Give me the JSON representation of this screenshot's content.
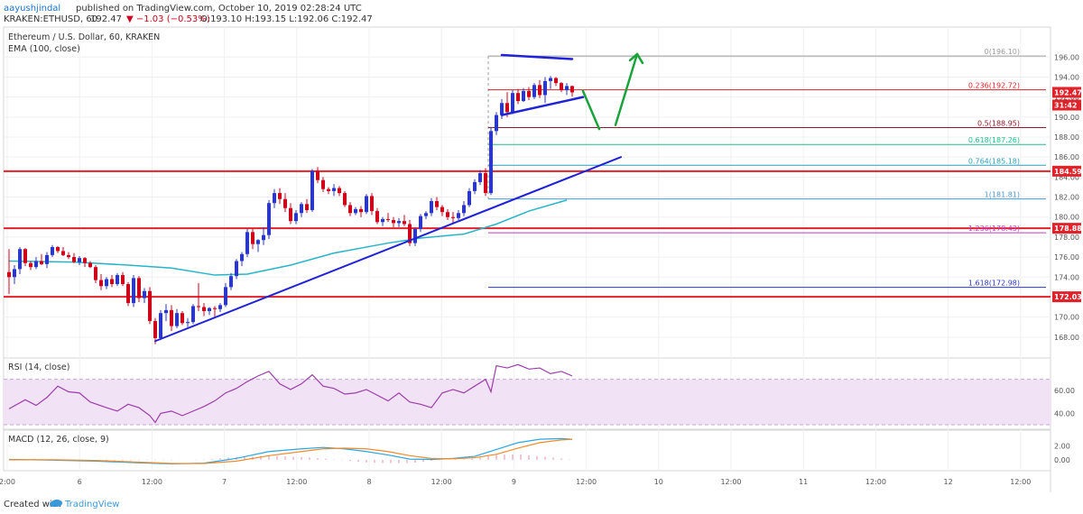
{
  "header": {
    "publisher_line_user": "aayushjindal",
    "publisher_line_rest": " published on TradingView.com, October 10, 2019 02:28:24 UTC",
    "symbol_line_prefix": "KRAKEN:ETHUSD, 60",
    "last_price": "192.47",
    "change": "▼ −1.03 (−0.53%)",
    "ohlc": "O:193.10 H:193.15 L:192.06 C:192.47"
  },
  "main_pane": {
    "title": "Ethereum / U.S. Dollar, 60, KRAKEN",
    "indicator": "EMA (100, close)"
  },
  "rsi_pane": {
    "label": "RSI (14, close)"
  },
  "macd_pane": {
    "label": "MACD (12, 26, close, 9)"
  },
  "footer": {
    "created_with": "Created with",
    "brand": "TradingView"
  },
  "colors": {
    "up": "#2a37c8",
    "down": "#d0021b",
    "ema": "#26b5c8",
    "trend": "#1f22d6",
    "arrow": "#19a33a",
    "hline": "#e0232a",
    "rsi_line": "#9c3caa",
    "rsi_fill": "#f1e3f5",
    "macd_line": "#2aa7e0",
    "macd_signal": "#f08a2a",
    "macd_hist": "#e48aa8"
  },
  "chart_data": {
    "type": "candlestick",
    "x_ticks": [
      "2:00",
      "6",
      "12:00",
      "7",
      "12:00",
      "8",
      "12:00",
      "9",
      "12:00",
      "10",
      "12:00",
      "11",
      "12:00",
      "12",
      "12:00"
    ],
    "price_axis": [
      "196.00",
      "194.00",
      "192.00",
      "190.00",
      "188.00",
      "186.00",
      "184.00",
      "182.00",
      "180.00",
      "178.00",
      "176.00",
      "174.00",
      "172.00",
      "170.00",
      "168.00"
    ],
    "price_range": [
      166.0,
      199.0
    ],
    "price_tags": [
      {
        "label": "192.47",
        "value": 192.47,
        "color": "#e0232a"
      },
      {
        "label": "31:42",
        "value": 191.2,
        "color": "#e0232a"
      },
      {
        "label": "184.59",
        "value": 184.59,
        "color": "#e0232a"
      },
      {
        "label": "178.88",
        "value": 178.88,
        "color": "#e0232a"
      },
      {
        "label": "172.03",
        "value": 172.03,
        "color": "#e0232a"
      }
    ],
    "horizontal_levels": [
      184.59,
      178.88,
      172.03
    ],
    "fibonacci": [
      {
        "label": "0(196.10)",
        "value": 196.1,
        "color": "#9a9a9a"
      },
      {
        "label": "0.236(192.72)",
        "value": 192.72,
        "color": "#e0232a"
      },
      {
        "label": "0.5(188.95)",
        "value": 188.95,
        "color": "#8c1a2a"
      },
      {
        "label": "0.618(187.26)",
        "value": 187.26,
        "color": "#1fbf8a"
      },
      {
        "label": "0.764(185.18)",
        "value": 185.18,
        "color": "#2aa0b8"
      },
      {
        "label": "1(181.81)",
        "value": 181.81,
        "color": "#4a9ad8"
      },
      {
        "label": "1.236(178.43)",
        "value": 178.43,
        "color": "#c03cc0"
      },
      {
        "label": "1.618(172.98)",
        "value": 172.98,
        "color": "#2a37c8"
      }
    ],
    "candles": [
      [
        174.5,
        176.8,
        172.3,
        174.0
      ],
      [
        174.0,
        175.2,
        173.3,
        174.8
      ],
      [
        174.8,
        177.0,
        174.3,
        176.8
      ],
      [
        176.8,
        176.9,
        175.1,
        175.4
      ],
      [
        175.4,
        175.6,
        174.7,
        175.0
      ],
      [
        175.0,
        176.0,
        174.8,
        175.6
      ],
      [
        175.6,
        176.3,
        175.2,
        175.3
      ],
      [
        175.3,
        176.5,
        174.9,
        176.2
      ],
      [
        176.2,
        177.2,
        176.0,
        177.0
      ],
      [
        177.0,
        177.1,
        176.4,
        176.6
      ],
      [
        176.6,
        177.0,
        176.1,
        176.2
      ],
      [
        176.2,
        176.5,
        175.8,
        176.0
      ],
      [
        176.0,
        176.4,
        175.4,
        175.5
      ],
      [
        175.5,
        176.1,
        175.2,
        175.9
      ],
      [
        175.9,
        176.0,
        175.0,
        175.4
      ],
      [
        175.4,
        175.6,
        174.9,
        175.0
      ],
      [
        175.0,
        175.2,
        173.4,
        173.7
      ],
      [
        173.7,
        174.3,
        172.7,
        173.1
      ],
      [
        173.1,
        174.0,
        172.8,
        173.8
      ],
      [
        173.8,
        174.2,
        173.0,
        173.3
      ],
      [
        173.3,
        174.4,
        173.1,
        174.2
      ],
      [
        174.2,
        174.5,
        173.1,
        173.3
      ],
      [
        173.3,
        173.5,
        171.1,
        171.4
      ],
      [
        171.4,
        174.2,
        171.0,
        173.9
      ],
      [
        173.9,
        174.1,
        171.5,
        171.9
      ],
      [
        171.9,
        172.9,
        171.4,
        172.6
      ],
      [
        172.6,
        173.0,
        169.3,
        169.6
      ],
      [
        169.6,
        169.9,
        167.3,
        167.9
      ],
      [
        167.9,
        170.7,
        167.7,
        170.4
      ],
      [
        170.4,
        171.3,
        169.6,
        170.7
      ],
      [
        170.7,
        171.2,
        168.6,
        169.1
      ],
      [
        169.1,
        170.8,
        168.9,
        170.4
      ],
      [
        170.4,
        170.6,
        169.2,
        169.4
      ],
      [
        169.4,
        169.9,
        169.0,
        169.5
      ],
      [
        169.5,
        171.3,
        169.3,
        171.1
      ],
      [
        171.1,
        173.4,
        170.6,
        171.0
      ],
      [
        171.0,
        171.4,
        170.1,
        170.6
      ],
      [
        170.6,
        171.0,
        170.2,
        170.9
      ],
      [
        170.9,
        171.1,
        169.9,
        170.8
      ],
      [
        170.8,
        171.4,
        170.5,
        171.2
      ],
      [
        171.2,
        173.4,
        171.0,
        173.0
      ],
      [
        173.0,
        174.4,
        172.7,
        174.1
      ],
      [
        174.1,
        175.8,
        173.8,
        175.6
      ],
      [
        175.6,
        176.5,
        175.1,
        176.3
      ],
      [
        176.3,
        178.8,
        176.0,
        178.5
      ],
      [
        178.5,
        178.8,
        176.8,
        177.3
      ],
      [
        177.3,
        177.8,
        176.5,
        177.7
      ],
      [
        177.7,
        179.0,
        177.2,
        178.2
      ],
      [
        178.2,
        181.7,
        177.8,
        181.4
      ],
      [
        181.4,
        182.8,
        180.9,
        182.4
      ],
      [
        182.4,
        182.9,
        181.3,
        181.8
      ],
      [
        181.8,
        182.4,
        180.5,
        180.9
      ],
      [
        180.9,
        181.4,
        179.3,
        179.6
      ],
      [
        179.6,
        180.7,
        179.3,
        180.4
      ],
      [
        180.4,
        181.5,
        180.0,
        181.3
      ],
      [
        181.3,
        181.8,
        180.4,
        180.7
      ],
      [
        180.7,
        184.8,
        180.5,
        184.6
      ],
      [
        184.6,
        185.0,
        183.4,
        183.7
      ],
      [
        183.7,
        184.0,
        182.5,
        182.8
      ],
      [
        182.8,
        183.0,
        182.3,
        182.6
      ],
      [
        182.6,
        183.3,
        182.1,
        182.9
      ],
      [
        182.9,
        183.1,
        182.1,
        182.4
      ],
      [
        182.4,
        182.6,
        181.0,
        181.2
      ],
      [
        181.2,
        181.5,
        180.1,
        180.4
      ],
      [
        180.4,
        181.0,
        180.2,
        180.8
      ],
      [
        180.8,
        181.1,
        180.0,
        180.5
      ],
      [
        180.5,
        182.3,
        180.3,
        182.1
      ],
      [
        182.1,
        182.4,
        180.2,
        180.6
      ],
      [
        180.6,
        180.9,
        179.3,
        179.5
      ],
      [
        179.5,
        180.0,
        179.1,
        179.8
      ],
      [
        179.8,
        180.4,
        179.5,
        179.7
      ],
      [
        179.7,
        180.0,
        179.0,
        179.4
      ],
      [
        179.4,
        179.9,
        179.0,
        179.6
      ],
      [
        179.6,
        180.2,
        179.1,
        179.3
      ],
      [
        179.3,
        179.7,
        177.1,
        177.4
      ],
      [
        177.4,
        179.0,
        177.1,
        178.8
      ],
      [
        178.8,
        180.3,
        178.5,
        180.1
      ],
      [
        180.1,
        180.6,
        179.8,
        180.4
      ],
      [
        180.4,
        181.9,
        180.1,
        181.6
      ],
      [
        181.6,
        182.0,
        180.7,
        181.0
      ],
      [
        181.0,
        181.2,
        180.1,
        180.5
      ],
      [
        180.5,
        180.8,
        179.7,
        180.0
      ],
      [
        180.0,
        180.5,
        179.3,
        179.9
      ],
      [
        179.9,
        180.7,
        179.7,
        180.4
      ],
      [
        180.4,
        181.6,
        180.1,
        181.2
      ],
      [
        181.2,
        182.9,
        181.0,
        182.6
      ],
      [
        182.6,
        183.8,
        182.3,
        183.5
      ],
      [
        183.5,
        184.7,
        183.2,
        184.4
      ],
      [
        184.4,
        184.9,
        182.1,
        182.4
      ],
      [
        182.4,
        189.0,
        182.2,
        188.6
      ],
      [
        188.6,
        190.5,
        188.2,
        190.2
      ],
      [
        190.2,
        191.8,
        189.8,
        191.4
      ],
      [
        191.4,
        192.5,
        190.0,
        190.5
      ],
      [
        190.5,
        192.7,
        190.3,
        192.4
      ],
      [
        192.4,
        192.8,
        191.3,
        191.6
      ],
      [
        191.6,
        192.9,
        191.5,
        192.6
      ],
      [
        192.6,
        193.0,
        191.7,
        192.0
      ],
      [
        192.0,
        193.4,
        191.8,
        193.2
      ],
      [
        193.2,
        193.7,
        191.9,
        192.2
      ],
      [
        192.2,
        194.0,
        191.4,
        193.6
      ],
      [
        193.6,
        194.1,
        192.8,
        193.9
      ],
      [
        193.9,
        194.0,
        193.1,
        193.4
      ],
      [
        193.4,
        193.5,
        192.5,
        192.7
      ],
      [
        192.7,
        193.4,
        192.2,
        193.1
      ],
      [
        193.1,
        193.15,
        192.06,
        192.47
      ]
    ],
    "ema_100": [
      [
        0,
        175.6
      ],
      [
        12,
        175.5
      ],
      [
        22,
        175.2
      ],
      [
        30,
        174.9
      ],
      [
        38,
        174.2
      ],
      [
        44,
        174.3
      ],
      [
        52,
        175.2
      ],
      [
        60,
        176.4
      ],
      [
        70,
        177.4
      ],
      [
        76,
        177.9
      ],
      [
        84,
        178.3
      ],
      [
        90,
        179.3
      ],
      [
        96,
        180.6
      ],
      [
        103,
        181.7
      ]
    ],
    "annotations": {
      "lower_trendline": [
        [
          27,
          167.6
        ],
        [
          113,
          186.0
        ]
      ],
      "upper_channel": [
        [
          91,
          196.2
        ],
        [
          104,
          195.8
        ]
      ],
      "lower_channel": [
        [
          91,
          190.2
        ],
        [
          106,
          192.0
        ]
      ],
      "green_down_arrow": [
        [
          106,
          192.6
        ],
        [
          109,
          188.8
        ]
      ],
      "green_up_arrow": [
        [
          112,
          189.2
        ],
        [
          116,
          196.3
        ]
      ]
    },
    "rsi_axis": [
      "60.00",
      "40.00"
    ],
    "rsi_range": [
      26,
      88
    ],
    "rsi_band": [
      30,
      70
    ],
    "rsi": [
      [
        0,
        44
      ],
      [
        3,
        52
      ],
      [
        5,
        47
      ],
      [
        7,
        54
      ],
      [
        9,
        64
      ],
      [
        11,
        59
      ],
      [
        13,
        58
      ],
      [
        15,
        50
      ],
      [
        18,
        45
      ],
      [
        20,
        42
      ],
      [
        22,
        48
      ],
      [
        24,
        45
      ],
      [
        26,
        38
      ],
      [
        27,
        32
      ],
      [
        28,
        40
      ],
      [
        30,
        42
      ],
      [
        32,
        38
      ],
      [
        34,
        42
      ],
      [
        36,
        46
      ],
      [
        38,
        51
      ],
      [
        40,
        58
      ],
      [
        42,
        62
      ],
      [
        44,
        68
      ],
      [
        46,
        73
      ],
      [
        48,
        77
      ],
      [
        50,
        66
      ],
      [
        52,
        61
      ],
      [
        54,
        66
      ],
      [
        56,
        74
      ],
      [
        58,
        64
      ],
      [
        60,
        62
      ],
      [
        62,
        57
      ],
      [
        64,
        58
      ],
      [
        66,
        61
      ],
      [
        68,
        56
      ],
      [
        70,
        51
      ],
      [
        72,
        58
      ],
      [
        74,
        50
      ],
      [
        76,
        48
      ],
      [
        78,
        45
      ],
      [
        80,
        58
      ],
      [
        82,
        61
      ],
      [
        84,
        58
      ],
      [
        86,
        64
      ],
      [
        88,
        70
      ],
      [
        89,
        59
      ],
      [
        90,
        82
      ],
      [
        92,
        80
      ],
      [
        94,
        83
      ],
      [
        96,
        79
      ],
      [
        98,
        80
      ],
      [
        100,
        75
      ],
      [
        102,
        77
      ],
      [
        104,
        73
      ]
    ],
    "macd_axis": [
      "2.00",
      "0.00"
    ],
    "macd_range": [
      -1.6,
      4.2
    ],
    "macd": [
      [
        0,
        0.05
      ],
      [
        8,
        -0.05
      ],
      [
        16,
        -0.2
      ],
      [
        24,
        -0.45
      ],
      [
        30,
        -0.6
      ],
      [
        36,
        -0.5
      ],
      [
        42,
        0.2
      ],
      [
        48,
        1.2
      ],
      [
        54,
        1.6
      ],
      [
        58,
        1.8
      ],
      [
        62,
        1.6
      ],
      [
        66,
        1.2
      ],
      [
        70,
        0.7
      ],
      [
        74,
        0.1
      ],
      [
        78,
        0.05
      ],
      [
        82,
        0.2
      ],
      [
        86,
        0.5
      ],
      [
        90,
        1.5
      ],
      [
        94,
        2.5
      ],
      [
        98,
        3.0
      ],
      [
        102,
        3.1
      ],
      [
        104,
        3.0
      ]
    ],
    "macd_signal": [
      [
        0,
        0.0
      ],
      [
        8,
        0.0
      ],
      [
        16,
        -0.1
      ],
      [
        24,
        -0.35
      ],
      [
        30,
        -0.55
      ],
      [
        36,
        -0.55
      ],
      [
        42,
        -0.2
      ],
      [
        48,
        0.6
      ],
      [
        54,
        1.2
      ],
      [
        58,
        1.6
      ],
      [
        62,
        1.7
      ],
      [
        66,
        1.6
      ],
      [
        70,
        1.2
      ],
      [
        74,
        0.6
      ],
      [
        78,
        0.2
      ],
      [
        82,
        0.15
      ],
      [
        86,
        0.3
      ],
      [
        90,
        0.8
      ],
      [
        94,
        1.7
      ],
      [
        98,
        2.5
      ],
      [
        102,
        2.9
      ],
      [
        104,
        3.0
      ]
    ]
  }
}
